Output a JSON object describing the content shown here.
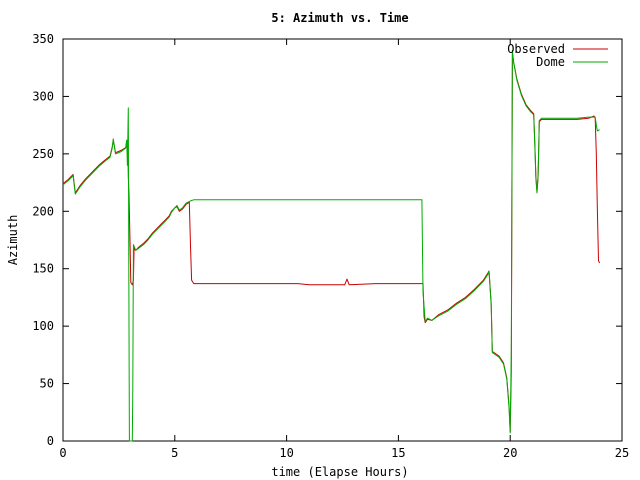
{
  "chart_data": {
    "type": "line",
    "title": "5: Azimuth vs. Time",
    "xlabel": "time (Elapse Hours)",
    "ylabel": "Azimuth",
    "xlim": [
      0,
      25
    ],
    "ylim": [
      0,
      350
    ],
    "x_ticks": [
      0,
      5,
      10,
      15,
      20,
      25
    ],
    "y_ticks": [
      0,
      50,
      100,
      150,
      200,
      250,
      300,
      350
    ],
    "grid": false,
    "legend_position": "top-right",
    "series": [
      {
        "name": "Observed",
        "color": "#cc0000",
        "points": [
          [
            0.0,
            224
          ],
          [
            0.25,
            228
          ],
          [
            0.45,
            232
          ],
          [
            0.55,
            216
          ],
          [
            0.75,
            222
          ],
          [
            1.0,
            228
          ],
          [
            1.3,
            234
          ],
          [
            1.6,
            240
          ],
          [
            1.9,
            245
          ],
          [
            2.1,
            248
          ],
          [
            2.2,
            256
          ],
          [
            2.25,
            262
          ],
          [
            2.35,
            251
          ],
          [
            2.6,
            253
          ],
          [
            2.85,
            256
          ],
          [
            2.9,
            262
          ],
          [
            2.92,
            230
          ],
          [
            2.95,
            215
          ],
          [
            3.0,
            170
          ],
          [
            3.03,
            138
          ],
          [
            3.1,
            136
          ],
          [
            3.15,
            140
          ],
          [
            3.18,
            168
          ],
          [
            3.25,
            166
          ],
          [
            3.4,
            169
          ],
          [
            3.6,
            172
          ],
          [
            3.8,
            176
          ],
          [
            4.0,
            181
          ],
          [
            4.2,
            185
          ],
          [
            4.4,
            189
          ],
          [
            4.6,
            193
          ],
          [
            4.75,
            196
          ],
          [
            4.85,
            200
          ],
          [
            5.0,
            203
          ],
          [
            5.1,
            204
          ],
          [
            5.2,
            200
          ],
          [
            5.35,
            202
          ],
          [
            5.5,
            206
          ],
          [
            5.65,
            208
          ],
          [
            5.7,
            170
          ],
          [
            5.75,
            140
          ],
          [
            5.85,
            137
          ],
          [
            7.0,
            137
          ],
          [
            9.0,
            137
          ],
          [
            10.5,
            137
          ],
          [
            11.0,
            136
          ],
          [
            12.3,
            136
          ],
          [
            12.6,
            136
          ],
          [
            12.7,
            141
          ],
          [
            12.8,
            136
          ],
          [
            14.0,
            137
          ],
          [
            15.5,
            137
          ],
          [
            16.1,
            137
          ],
          [
            16.15,
            108
          ],
          [
            16.2,
            103
          ],
          [
            16.3,
            106
          ],
          [
            16.5,
            105
          ],
          [
            16.8,
            110
          ],
          [
            17.2,
            114
          ],
          [
            17.6,
            120
          ],
          [
            18.0,
            125
          ],
          [
            18.4,
            132
          ],
          [
            18.8,
            140
          ],
          [
            19.0,
            146
          ],
          [
            19.05,
            148
          ],
          [
            19.15,
            120
          ],
          [
            19.2,
            78
          ],
          [
            19.5,
            74
          ],
          [
            19.7,
            68
          ],
          [
            19.85,
            55
          ],
          [
            19.95,
            30
          ],
          [
            20.0,
            8
          ],
          [
            20.05,
            60
          ],
          [
            20.1,
            338
          ],
          [
            20.15,
            330
          ],
          [
            20.3,
            315
          ],
          [
            20.5,
            302
          ],
          [
            20.7,
            293
          ],
          [
            20.9,
            288
          ],
          [
            21.05,
            285
          ],
          [
            21.1,
            260
          ],
          [
            21.15,
            230
          ],
          [
            21.2,
            217
          ],
          [
            21.25,
            230
          ],
          [
            21.3,
            278
          ],
          [
            21.4,
            280
          ],
          [
            22.0,
            280
          ],
          [
            23.0,
            280
          ],
          [
            23.5,
            281
          ],
          [
            23.75,
            283
          ],
          [
            23.8,
            281
          ],
          [
            23.85,
            250
          ],
          [
            23.9,
            200
          ],
          [
            23.95,
            157
          ],
          [
            24.0,
            155
          ]
        ]
      },
      {
        "name": "Dome",
        "color": "#00aa00",
        "points": [
          [
            0.0,
            223
          ],
          [
            0.25,
            227
          ],
          [
            0.45,
            231
          ],
          [
            0.55,
            215
          ],
          [
            0.75,
            221
          ],
          [
            1.0,
            227
          ],
          [
            1.3,
            233
          ],
          [
            1.6,
            239
          ],
          [
            1.9,
            244
          ],
          [
            2.1,
            247
          ],
          [
            2.2,
            255
          ],
          [
            2.25,
            263
          ],
          [
            2.35,
            250
          ],
          [
            2.6,
            252
          ],
          [
            2.8,
            255
          ],
          [
            2.85,
            262
          ],
          [
            2.88,
            240
          ],
          [
            2.92,
            290
          ],
          [
            2.95,
            100
          ],
          [
            2.97,
            0
          ],
          [
            3.1,
            0
          ],
          [
            3.12,
            45
          ],
          [
            3.15,
            171
          ],
          [
            3.25,
            166
          ],
          [
            3.4,
            168
          ],
          [
            3.6,
            171
          ],
          [
            3.8,
            175
          ],
          [
            4.0,
            180
          ],
          [
            4.2,
            184
          ],
          [
            4.4,
            188
          ],
          [
            4.6,
            192
          ],
          [
            4.75,
            195
          ],
          [
            4.85,
            199
          ],
          [
            5.0,
            203
          ],
          [
            5.1,
            205
          ],
          [
            5.2,
            201
          ],
          [
            5.35,
            203
          ],
          [
            5.5,
            207
          ],
          [
            5.7,
            209
          ],
          [
            5.85,
            210
          ],
          [
            8.0,
            210
          ],
          [
            11.0,
            210
          ],
          [
            14.0,
            210
          ],
          [
            16.05,
            210
          ],
          [
            16.1,
            130
          ],
          [
            16.2,
            104
          ],
          [
            16.3,
            107
          ],
          [
            16.5,
            105
          ],
          [
            16.8,
            109
          ],
          [
            17.2,
            113
          ],
          [
            17.6,
            119
          ],
          [
            18.0,
            124
          ],
          [
            18.4,
            131
          ],
          [
            18.8,
            139
          ],
          [
            19.0,
            145
          ],
          [
            19.05,
            148
          ],
          [
            19.15,
            118
          ],
          [
            19.2,
            77
          ],
          [
            19.5,
            73
          ],
          [
            19.7,
            67
          ],
          [
            19.85,
            54
          ],
          [
            19.95,
            28
          ],
          [
            20.0,
            7
          ],
          [
            20.05,
            80
          ],
          [
            20.1,
            340
          ],
          [
            20.15,
            330
          ],
          [
            20.3,
            314
          ],
          [
            20.5,
            301
          ],
          [
            20.7,
            292
          ],
          [
            20.9,
            287
          ],
          [
            21.05,
            284
          ],
          [
            21.1,
            258
          ],
          [
            21.15,
            228
          ],
          [
            21.2,
            216
          ],
          [
            21.25,
            232
          ],
          [
            21.3,
            279
          ],
          [
            21.4,
            281
          ],
          [
            22.0,
            281
          ],
          [
            23.0,
            281
          ],
          [
            23.5,
            282
          ],
          [
            23.8,
            282
          ],
          [
            23.85,
            275
          ],
          [
            23.9,
            270
          ],
          [
            24.0,
            271
          ]
        ]
      }
    ]
  }
}
